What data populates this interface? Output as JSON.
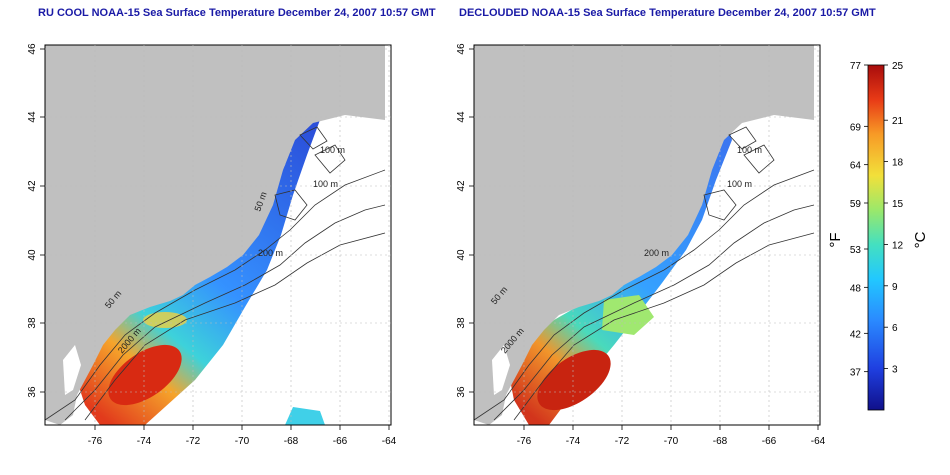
{
  "titles": {
    "left": "RU COOL NOAA-15 Sea Surface Temperature December 24, 2007 10:57 GMT",
    "right": "DECLOUDED NOAA-15 Sea Surface Temperature December 24, 2007 10:57 GMT"
  },
  "axes": {
    "x_ticks": [
      "-76",
      "-74",
      "-72",
      "-70",
      "-68",
      "-66",
      "-64"
    ],
    "y_ticks": [
      "46",
      "44",
      "42",
      "40",
      "38",
      "36"
    ]
  },
  "contours": {
    "left": [
      "100 m",
      "100 m",
      "50 m",
      "200 m",
      "50 m",
      "2000 m"
    ],
    "right": [
      "100 m",
      "100 m",
      "200 m",
      "50 m",
      "2000 m"
    ]
  },
  "colorbar": {
    "fahrenheit": [
      "77",
      "69",
      "64",
      "59",
      "53",
      "48",
      "42",
      "37"
    ],
    "celsius": [
      "25",
      "21",
      "18",
      "15",
      "12",
      "9",
      "6",
      "3"
    ],
    "unit_f": "°F",
    "unit_c": "°C",
    "range_c": [
      0,
      25
    ],
    "colors": [
      "#10108a",
      "#1f3fe0",
      "#2a8aff",
      "#22c8ff",
      "#44e0c0",
      "#9be86a",
      "#f2e03a",
      "#f79a26",
      "#e83a16",
      "#a80c0c"
    ]
  },
  "colors": {
    "land": "#c0c0c0",
    "title": "#1a1aa6",
    "contour": "#333333"
  }
}
